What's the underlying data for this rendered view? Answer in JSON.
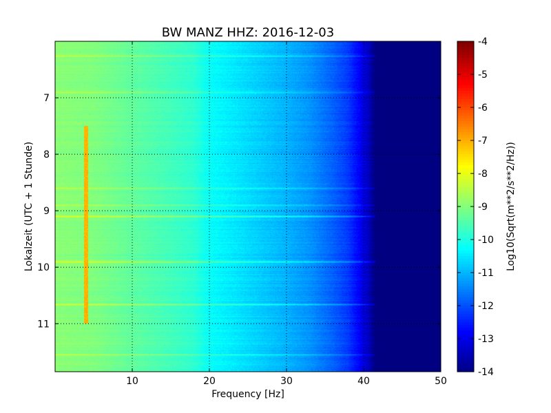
{
  "chart_data": {
    "type": "heatmap",
    "title": "BW MANZ HHZ: 2016-12-03",
    "xlabel": "Frequency [Hz]",
    "ylabel": "Lokalzeit (UTC + 1 Stunde)",
    "xlim": [
      0,
      50
    ],
    "ylim": [
      6.0,
      11.85
    ],
    "y_inverted": true,
    "x_ticks": [
      "10",
      "20",
      "30",
      "40",
      "50"
    ],
    "x_tick_values": [
      10,
      20,
      30,
      40,
      50
    ],
    "y_ticks": [
      "7",
      "8",
      "9",
      "10",
      "11"
    ],
    "y_tick_values": [
      7,
      8,
      9,
      10,
      11
    ],
    "grid": true,
    "colormap": "jet",
    "colorbar": {
      "label": "Log10(Sqrt(m**2/s**2/Hz))",
      "range": [
        -14,
        -4
      ],
      "ticks": [
        "-4",
        "-5",
        "-6",
        "-7",
        "-8",
        "-9",
        "-10",
        "-11",
        "-12",
        "-13",
        "-14"
      ],
      "tick_values": [
        -4,
        -5,
        -6,
        -7,
        -8,
        -9,
        -10,
        -11,
        -12,
        -13,
        -14
      ]
    },
    "frequency_profile": {
      "frequency_hz": [
        0,
        5,
        10,
        15,
        18,
        20,
        25,
        30,
        33,
        36,
        38,
        39.5,
        40.5,
        41.5,
        50
      ],
      "log10_amplitude": [
        -8.9,
        -9.0,
        -9.3,
        -9.6,
        -9.8,
        -10.2,
        -10.6,
        -11.0,
        -11.3,
        -11.8,
        -12.2,
        -12.8,
        -13.3,
        -14.0,
        -14.0
      ]
    },
    "features": [
      {
        "type": "vertical_line",
        "frequency_hz": 4.0,
        "time_range": [
          7.5,
          11.0
        ],
        "log10_amplitude": -7.0
      },
      {
        "type": "horizontal_band",
        "time": 6.25,
        "log10_amplitude_offset": 0.6
      },
      {
        "type": "horizontal_band",
        "time": 6.9,
        "log10_amplitude_offset": 0.5
      },
      {
        "type": "horizontal_band",
        "time": 8.6,
        "log10_amplitude_offset": 0.6
      },
      {
        "type": "horizontal_band",
        "time": 8.9,
        "log10_amplitude_offset": 0.5
      },
      {
        "type": "horizontal_band",
        "time": 9.1,
        "log10_amplitude_offset": 0.9
      },
      {
        "type": "horizontal_band",
        "time": 9.9,
        "log10_amplitude_offset": 0.8
      },
      {
        "type": "horizontal_band",
        "time": 10.65,
        "log10_amplitude_offset": 0.7
      },
      {
        "type": "horizontal_band",
        "time": 11.55,
        "log10_amplitude_offset": 0.5
      }
    ]
  },
  "colors": {
    "axes_edge": "#000000",
    "grid": "#000000",
    "background": "#ffffff"
  }
}
